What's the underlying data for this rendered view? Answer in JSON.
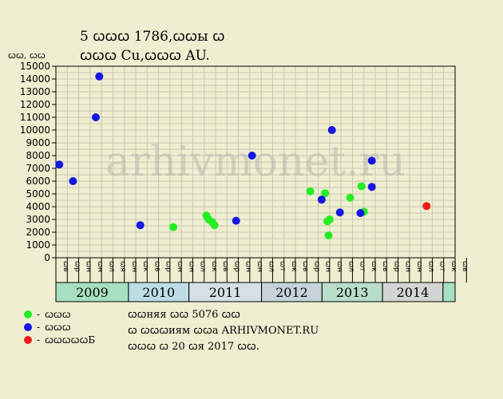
{
  "header": {
    "title_line1": "5 ꞷꞷꞷ 1786,ꞷꞷы ꞷ",
    "title_line2": "ꞷꞷꞷ Cu,ꞷꞷꞷ AU."
  },
  "legend": [
    {
      "label": "ꞷꞷꞷ",
      "color": "#22ee22"
    },
    {
      "label": "ꞷꞷꞷ",
      "color": "#1515e6"
    },
    {
      "label": "ꞷꞷꞷꞷꞷБ",
      "color": "#ee1a1a"
    }
  ],
  "footer": {
    "line1": "ꞷꞷняя ꞷꞷ 5076 ꞷꞷ",
    "line2": "ꞷ ꞷꞷꞷиям ꞷꞷа ARHIVMONET.RU",
    "line3": "ꞷꞷꞷ ꞷ 20 ꞷя 2017 ꞷꞷ."
  },
  "watermark": "arhivmonet.ru",
  "chart_data": {
    "type": "scatter",
    "ylabel": "ꞷꞷ, ꞷꞷ",
    "ylim": [
      0,
      15000
    ],
    "yticks": [
      0,
      1000,
      2000,
      3000,
      4000,
      5000,
      6000,
      7000,
      8000,
      9000,
      10000,
      11000,
      12000,
      13000,
      14000,
      15000
    ],
    "grid": true,
    "xlim": [
      0,
      35
    ],
    "month_labels": [
      "ꞷв",
      "ꞷр",
      "ꞷн",
      "ꞷн",
      "ꞷл",
      "ꞷя",
      "ꞷн",
      "ꞷк",
      "ꞷв",
      "ꞷр",
      "ꞷн",
      "ꞷн",
      "ꞷл",
      "ꞷк",
      "ꞷв",
      "ꞷр",
      "ꞷн",
      "ꞷн",
      "ꞷл",
      "ꞷт",
      "ꞷк",
      "ꞷв",
      "ꞷр",
      "ꞷн",
      "ꞷн",
      "ꞷл",
      "ꞷт",
      "ꞷк",
      "ꞷв",
      "ꞷр",
      "ꞷн",
      "ꞷн",
      "ꞷл",
      "ꞷт",
      "ꞷк",
      "ꞷв"
    ],
    "years": [
      {
        "label": "2009",
        "start": 0,
        "end": 6,
        "color": "#a7dfc1"
      },
      {
        "label": "2010",
        "start": 6,
        "end": 11,
        "color": "#bcdde6"
      },
      {
        "label": "2011",
        "start": 11,
        "end": 17,
        "color": "#d6dfe4"
      },
      {
        "label": "2012",
        "start": 17,
        "end": 22,
        "color": "#c6d3dc"
      },
      {
        "label": "2013",
        "start": 22,
        "end": 27,
        "color": "#b8dec9"
      },
      {
        "label": "2014",
        "start": 27,
        "end": 32,
        "color": "#d4d4d4"
      },
      {
        "label": "",
        "start": 32,
        "end": 33,
        "color": "#a7dfc1"
      }
    ],
    "series": [
      {
        "name": "ꞷꞷꞷ",
        "color": "#22ee22",
        "points": [
          [
            10.3,
            2400
          ],
          [
            13.2,
            3300
          ],
          [
            13.4,
            3000
          ],
          [
            13.7,
            2800
          ],
          [
            13.9,
            2550
          ],
          [
            22.3,
            5200
          ],
          [
            23.6,
            5050
          ],
          [
            23.8,
            2850
          ],
          [
            24.0,
            3000
          ],
          [
            23.9,
            1750
          ],
          [
            25.8,
            4700
          ],
          [
            26.8,
            5600
          ],
          [
            27.0,
            3600
          ]
        ]
      },
      {
        "name": "ꞷꞷꞷ",
        "color": "#1515e6",
        "points": [
          [
            0.3,
            7300
          ],
          [
            1.5,
            6000
          ],
          [
            3.5,
            11000
          ],
          [
            3.8,
            14200
          ],
          [
            7.4,
            2550
          ],
          [
            15.8,
            2900
          ],
          [
            17.2,
            8000
          ],
          [
            23.3,
            4550
          ],
          [
            24.2,
            10000
          ],
          [
            24.9,
            3550
          ],
          [
            26.7,
            3500
          ],
          [
            27.7,
            7600
          ],
          [
            27.7,
            5550
          ]
        ]
      },
      {
        "name": "ꞷꞷꞷꞷꞷБ",
        "color": "#ee1a1a",
        "points": [
          [
            32.5,
            4050
          ]
        ]
      }
    ]
  }
}
